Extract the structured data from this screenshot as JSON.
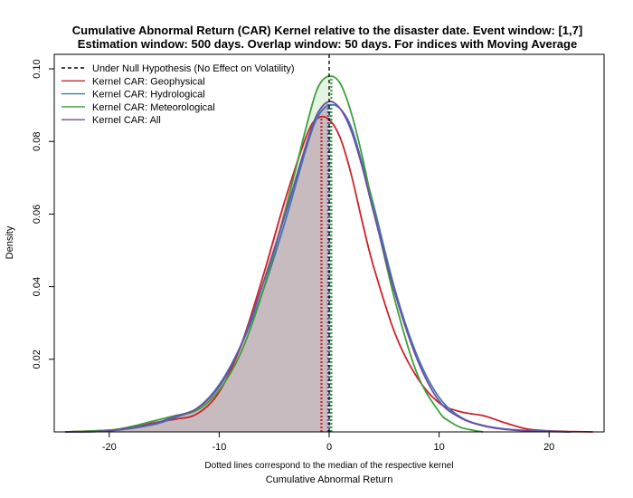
{
  "chart_data": {
    "type": "area",
    "title": "Cumulative Abnormal Return (CAR) Kernel relative to the disaster date. Event window: [1,7]",
    "subtitle": "Estimation window: 500 days. Overlap window: 50 days. For indices with Moving Average",
    "xlabel": "Cumulative Abnormal Return",
    "ylabel": "Density",
    "note": "Dotted lines correspond to the median of the respective kernel",
    "xlim": [
      -25,
      25
    ],
    "ylim": [
      0,
      0.104
    ],
    "xticks": [
      -20,
      -10,
      0,
      10,
      20
    ],
    "yticks": [
      0.02,
      0.04,
      0.06,
      0.08,
      0.1
    ],
    "xtick_labels": [
      "-20",
      "-10",
      "0",
      "10",
      "20"
    ],
    "ytick_labels": [
      "0.02",
      "0.04",
      "0.06",
      "0.08",
      "0.10"
    ],
    "legend_position": "top-left",
    "null_hypothesis": {
      "name": "Under Null Hypothesis (No Effect on Volatility)",
      "x": 0,
      "color": "#000000"
    },
    "series": [
      {
        "name": "Kernel CAR: Geophysical",
        "color": "#cc2229",
        "fill": "#f4c9cd",
        "median": -0.7,
        "x": [
          -24,
          -20,
          -18,
          -16,
          -14,
          -12,
          -10,
          -8,
          -6,
          -4,
          -2,
          -1,
          0,
          1,
          2,
          3,
          4,
          6,
          8,
          10,
          12,
          14,
          16,
          18,
          20,
          22,
          24
        ],
        "y": [
          0,
          0.0005,
          0.0012,
          0.0025,
          0.0035,
          0.005,
          0.011,
          0.024,
          0.043,
          0.064,
          0.082,
          0.0865,
          0.086,
          0.081,
          0.071,
          0.058,
          0.046,
          0.027,
          0.015,
          0.008,
          0.0055,
          0.0045,
          0.0025,
          0.0008,
          0.0003,
          0.0001,
          0
        ]
      },
      {
        "name": "Kernel CAR: Hydrological",
        "color": "#3f77b7",
        "fill": null,
        "median": 0.1,
        "x": [
          -24,
          -20,
          -16,
          -14,
          -12,
          -10,
          -8,
          -6,
          -4,
          -2,
          -1,
          0,
          1,
          2,
          3,
          4,
          6,
          8,
          10,
          12,
          14,
          16,
          18,
          20,
          22
        ],
        "y": [
          0,
          0.0003,
          0.002,
          0.004,
          0.0065,
          0.013,
          0.024,
          0.039,
          0.058,
          0.079,
          0.087,
          0.09,
          0.089,
          0.084,
          0.074,
          0.063,
          0.039,
          0.021,
          0.0095,
          0.004,
          0.0018,
          0.0008,
          0.0004,
          0.0002,
          0
        ]
      },
      {
        "name": "Kernel CAR: Meteorological",
        "color": "#3f9e3c",
        "fill": "#dcefd9",
        "median": 0.2,
        "x": [
          -24,
          -20,
          -18,
          -16,
          -14,
          -12,
          -10,
          -8,
          -6,
          -4,
          -2,
          -1,
          0,
          1,
          2,
          3,
          4,
          6,
          8,
          10,
          11,
          12,
          13,
          14
        ],
        "y": [
          0,
          0.0005,
          0.0015,
          0.003,
          0.0045,
          0.006,
          0.0115,
          0.022,
          0.039,
          0.061,
          0.085,
          0.095,
          0.098,
          0.096,
          0.088,
          0.076,
          0.062,
          0.036,
          0.016,
          0.0055,
          0.0028,
          0.0012,
          0.0005,
          0
        ]
      },
      {
        "name": "Kernel CAR: All",
        "color": "#6e4f9e",
        "fill": "#c3b6bb",
        "median": -0.1,
        "x": [
          -24,
          -20,
          -16,
          -14,
          -12,
          -10,
          -8,
          -6,
          -4,
          -2,
          -1,
          0,
          1,
          2,
          3,
          4,
          6,
          8,
          10,
          12,
          14,
          16,
          18,
          20,
          22
        ],
        "y": [
          0,
          0.0003,
          0.0023,
          0.0043,
          0.0065,
          0.0125,
          0.024,
          0.041,
          0.06,
          0.08,
          0.088,
          0.091,
          0.089,
          0.083,
          0.073,
          0.061,
          0.038,
          0.02,
          0.0085,
          0.0038,
          0.0017,
          0.0007,
          0.0003,
          0.0001,
          0
        ]
      }
    ]
  }
}
